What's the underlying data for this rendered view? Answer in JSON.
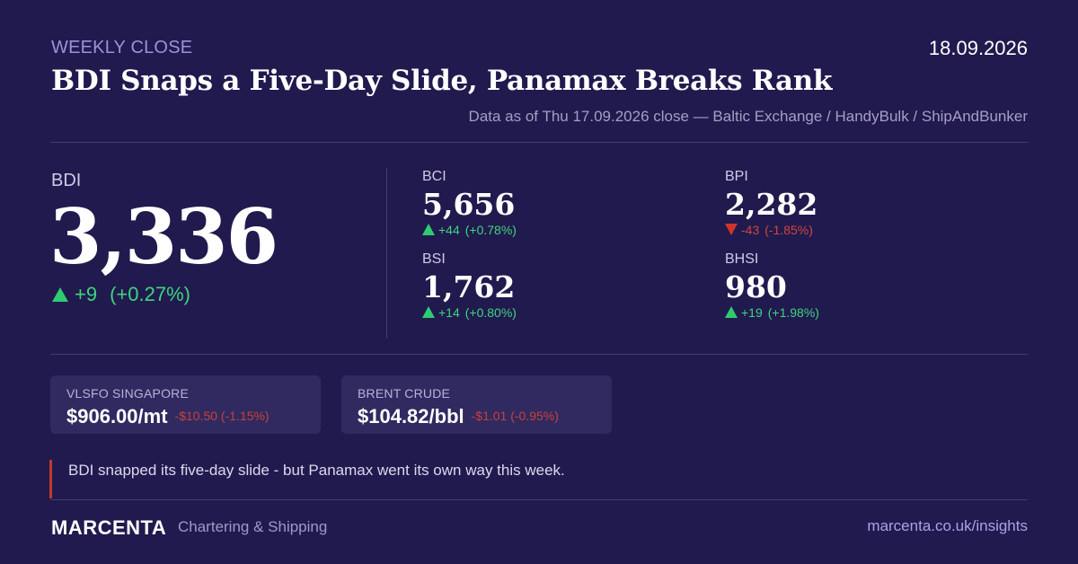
{
  "header": {
    "kicker": "WEEKLY CLOSE",
    "date": "18.09.2026",
    "headline": "BDI Snaps a Five-Day Slide, Panamax Breaks Rank",
    "source": "Data as of Thu 17.09.2026 close — Baltic Exchange / HandyBulk / ShipAndBunker"
  },
  "bdi": {
    "label": "BDI",
    "value": "3,336",
    "change": "+9",
    "change_pct": "(+0.27%)"
  },
  "indices": [
    {
      "label": "BCI",
      "value": "5,656",
      "change": "+44",
      "change_pct": "(+0.78%)",
      "direction": "up"
    },
    {
      "label": "BPI",
      "value": "2,282",
      "change": "-43",
      "change_pct": "(-1.85%)",
      "direction": "down"
    },
    {
      "label": "BSI",
      "value": "1,762",
      "change": "+14",
      "change_pct": "(+0.80%)",
      "direction": "up"
    },
    {
      "label": "BHSI",
      "value": "980",
      "change": "+19",
      "change_pct": "(+1.98%)",
      "direction": "up"
    }
  ],
  "commodities": [
    {
      "label": "VLSFO SINGAPORE",
      "price": "$906.00/mt",
      "change": "-$10.50 (-1.15%)"
    },
    {
      "label": "BRENT CRUDE",
      "price": "$104.82/bbl",
      "change": "-$1.01 (-0.95%)"
    }
  ],
  "quote": "BDI snapped its five-day slide - but Panamax went its own way this week.",
  "footer": {
    "brand": "MARCENTA",
    "tagline": "Chartering & Shipping",
    "url": "marcenta.co.uk/insights"
  },
  "colors": {
    "background": "#211a4e",
    "positive": "#3ed47e",
    "negative": "#d2453d",
    "accent": "#9b93d9"
  }
}
